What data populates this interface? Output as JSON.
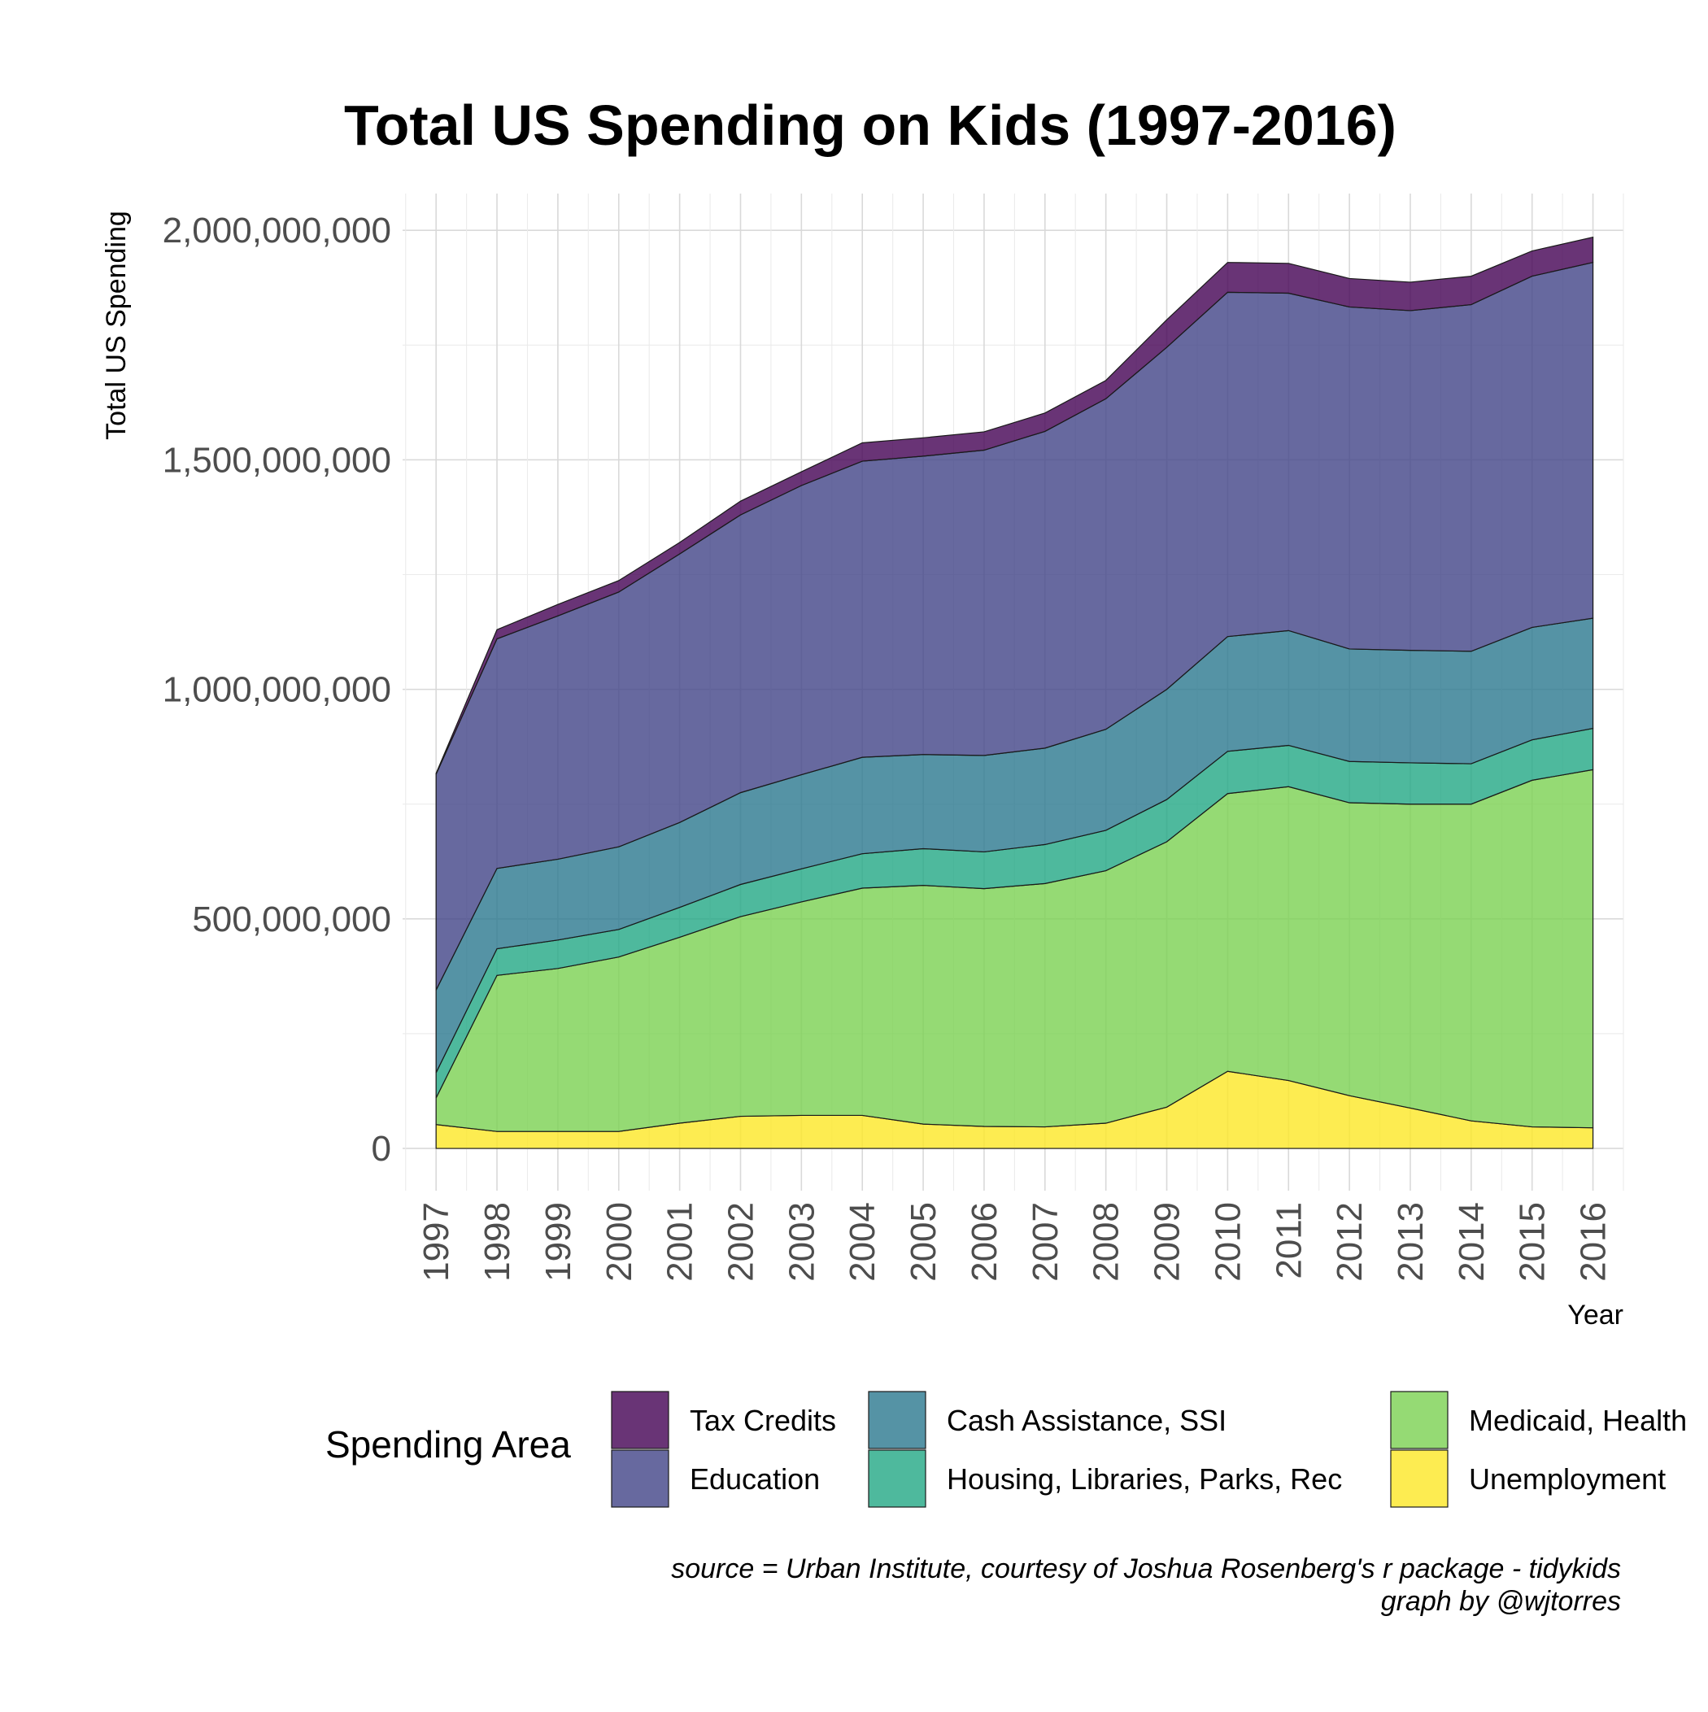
{
  "chart_data": {
    "type": "area",
    "stacked": true,
    "title": "Total US Spending on Kids (1997-2016)",
    "xlabel": "Year",
    "ylabel": "Total US Spending",
    "x": [
      1997,
      1998,
      1999,
      2000,
      2001,
      2002,
      2003,
      2004,
      2005,
      2006,
      2007,
      2008,
      2009,
      2010,
      2011,
      2012,
      2013,
      2014,
      2015,
      2016
    ],
    "x_tick_labels": [
      "1997",
      "1998",
      "1999",
      "2000",
      "2001",
      "2002",
      "2003",
      "2004",
      "2005",
      "2006",
      "2007",
      "2008",
      "2009",
      "2010",
      "2011",
      "2012",
      "2013",
      "2014",
      "2015",
      "2016"
    ],
    "y_ticks": [
      0,
      500000000,
      1000000000,
      1500000000,
      2000000000
    ],
    "y_tick_labels": [
      "0",
      "500,000,000",
      "1,000,000,000",
      "1,500,000,000",
      "2,000,000,000"
    ],
    "xlim": [
      1996.45,
      2016.5
    ],
    "ylim": [
      -92000000,
      2080000000
    ],
    "grid": true,
    "legend_title": "Spending Area",
    "legend_position": "bottom",
    "legend_order": [
      "Tax Credits",
      "Education",
      "Cash Assistance, SSI",
      "Housing, Libraries, Parks, Rec",
      "Medicaid, Health",
      "Unemployment"
    ],
    "series": [
      {
        "name": "Unemployment",
        "color": "#fde725",
        "values": [
          52000000,
          37000000,
          37000000,
          37000000,
          55000000,
          70000000,
          72000000,
          72000000,
          53000000,
          48000000,
          47000000,
          55000000,
          90000000,
          168000000,
          148000000,
          115000000,
          88000000,
          60000000,
          47000000,
          45000000
        ]
      },
      {
        "name": "Medicaid, Health",
        "color": "#7ad151",
        "values": [
          58000000,
          340000000,
          355000000,
          380000000,
          405000000,
          435000000,
          465000000,
          495000000,
          520000000,
          518000000,
          530000000,
          550000000,
          578000000,
          605000000,
          640000000,
          638000000,
          662000000,
          690000000,
          755000000,
          780000000
        ]
      },
      {
        "name": "Housing, Libraries, Parks, Rec",
        "color": "#22a884",
        "values": [
          55000000,
          58000000,
          62000000,
          60000000,
          65000000,
          70000000,
          72000000,
          75000000,
          80000000,
          80000000,
          85000000,
          88000000,
          92000000,
          92000000,
          90000000,
          90000000,
          90000000,
          88000000,
          88000000,
          90000000
        ]
      },
      {
        "name": "Cash Assistance, SSI",
        "color": "#2a788e",
        "values": [
          180000000,
          175000000,
          176000000,
          180000000,
          185000000,
          200000000,
          205000000,
          210000000,
          205000000,
          210000000,
          210000000,
          220000000,
          240000000,
          250000000,
          250000000,
          245000000,
          245000000,
          245000000,
          245000000,
          240000000
        ]
      },
      {
        "name": "Education",
        "color": "#414487",
        "values": [
          470000000,
          500000000,
          530000000,
          555000000,
          585000000,
          605000000,
          630000000,
          645000000,
          650000000,
          665000000,
          690000000,
          720000000,
          745000000,
          750000000,
          735000000,
          745000000,
          740000000,
          755000000,
          765000000,
          775000000
        ]
      },
      {
        "name": "Tax Credits",
        "color": "#440154",
        "values": [
          2000000,
          20000000,
          25000000,
          25000000,
          25000000,
          30000000,
          30000000,
          40000000,
          40000000,
          40000000,
          40000000,
          40000000,
          60000000,
          65000000,
          65000000,
          62000000,
          62000000,
          62000000,
          55000000,
          55000000
        ]
      }
    ]
  },
  "caption_lines": [
    "source = Urban Institute, courtesy of Joshua Rosenberg's r package - tidykids",
    "graph by @wjtorres"
  ]
}
